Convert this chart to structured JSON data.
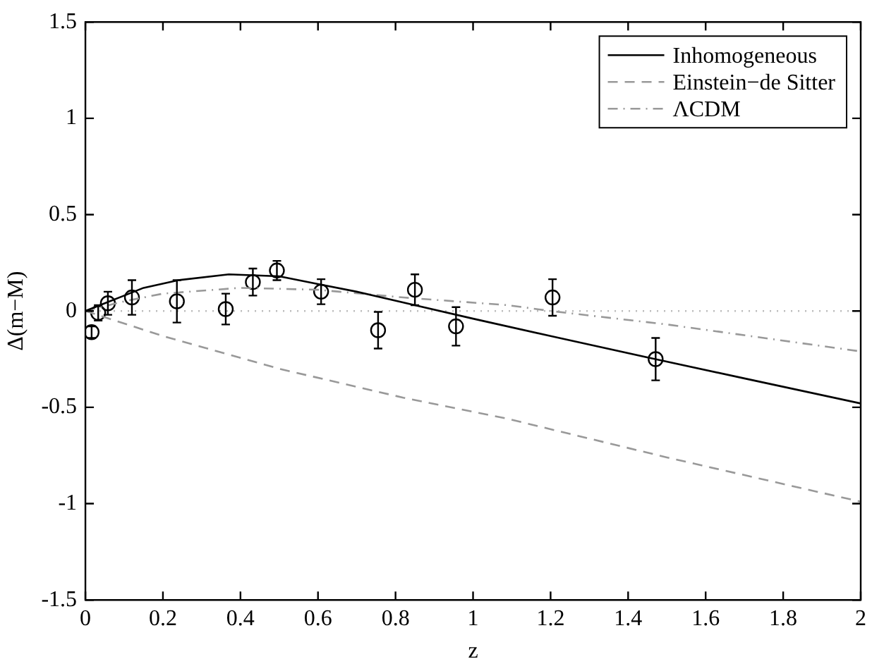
{
  "chart_data": {
    "type": "line",
    "xlabel": "z",
    "ylabel": "Δ(m−M)",
    "xlim": [
      0,
      2
    ],
    "ylim": [
      -1.5,
      1.5
    ],
    "xticks": [
      0,
      0.2,
      0.4,
      0.6,
      0.8,
      1,
      1.2,
      1.4,
      1.6,
      1.8,
      2
    ],
    "yticks": [
      -1.5,
      -1,
      -0.5,
      0,
      0.5,
      1,
      1.5
    ],
    "grid": false,
    "legend": "top right",
    "series": [
      {
        "name": "Inhomogeneous",
        "color": "#000000",
        "line_style": "solid",
        "marker": "none",
        "x": [
          0,
          0.05,
          0.1,
          0.15,
          0.24,
          0.37,
          0.5,
          0.6,
          0.7,
          0.85,
          1.0,
          1.2,
          1.47,
          1.7,
          2
        ],
        "values": [
          0,
          0.04,
          0.08,
          0.12,
          0.16,
          0.19,
          0.18,
          0.14,
          0.1,
          0.03,
          -0.04,
          -0.13,
          -0.25,
          -0.35,
          -0.48
        ]
      },
      {
        "name": "Einstein−de Sitter",
        "color": "#999999",
        "line_style": "dashed",
        "marker": "none",
        "x": [
          0,
          0.2,
          0.5,
          0.82,
          1.09,
          1.5,
          2
        ],
        "values": [
          0,
          -0.13,
          -0.3,
          -0.45,
          -0.56,
          -0.76,
          -0.99
        ]
      },
      {
        "name": "ΛCDM",
        "color": "#999999",
        "line_style": "dashdot",
        "marker": "none",
        "x": [
          0,
          0.1,
          0.2,
          0.4,
          0.6,
          0.82,
          1.09,
          1.2,
          1.5,
          2
        ],
        "values": [
          0,
          0.05,
          0.09,
          0.12,
          0.11,
          0.07,
          0.03,
          0,
          -0.07,
          -0.21
        ]
      },
      {
        "type": "scatter",
        "color": "#000000",
        "marker": "circle",
        "x": [
          0.016,
          0.033,
          0.058,
          0.12,
          0.236,
          0.362,
          0.432,
          0.494,
          0.608,
          0.755,
          0.85,
          0.956,
          1.205,
          1.471
        ],
        "values": [
          -0.11,
          -0.01,
          0.04,
          0.07,
          0.05,
          0.01,
          0.15,
          0.21,
          0.1,
          -0.1,
          0.11,
          -0.08,
          0.07,
          -0.25
        ],
        "errors": [
          0.03,
          0.04,
          0.06,
          0.09,
          0.11,
          0.08,
          0.07,
          0.05,
          0.065,
          0.095,
          0.08,
          0.1,
          0.095,
          0.11
        ]
      }
    ],
    "ref_lines": [
      {
        "axis": "y",
        "value": 0,
        "color": "#bbbbbb",
        "line_style": "dotted"
      }
    ]
  }
}
